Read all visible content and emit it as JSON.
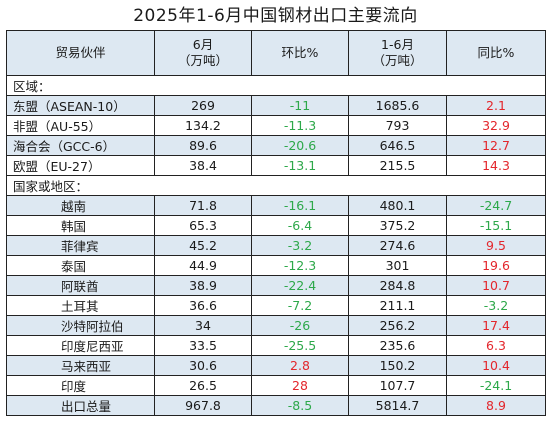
{
  "title": "2025年1-6月中国钢材出口主要流向",
  "headers": {
    "partner": "贸易伙伴",
    "june_line1": "6月",
    "june_line2": "（万吨）",
    "mom": "环比%",
    "h1_line1": "1-6月",
    "h1_line2": "（万吨）",
    "yoy": "同比%"
  },
  "sections": {
    "region": "区域：",
    "country": "国家或地区："
  },
  "regions": [
    {
      "name": "东盟（ASEAN-10）",
      "june": "269",
      "mom": "-11",
      "h1": "1685.6",
      "yoy": "2.1",
      "mom_color": "green",
      "yoy_color": "red"
    },
    {
      "name": "非盟（AU-55）",
      "june": "134.2",
      "mom": "-11.3",
      "h1": "793",
      "yoy": "32.9",
      "mom_color": "green",
      "yoy_color": "red"
    },
    {
      "name": "海合会（GCC-6）",
      "june": "89.6",
      "mom": "-20.6",
      "h1": "646.5",
      "yoy": "12.7",
      "mom_color": "green",
      "yoy_color": "red"
    },
    {
      "name": "欧盟（EU-27）",
      "june": "38.4",
      "mom": "-13.1",
      "h1": "215.5",
      "yoy": "14.3",
      "mom_color": "green",
      "yoy_color": "red"
    }
  ],
  "countries": [
    {
      "name": "越南",
      "june": "71.8",
      "mom": "-16.1",
      "h1": "480.1",
      "yoy": "-24.7",
      "mom_color": "green",
      "yoy_color": "green"
    },
    {
      "name": "韩国",
      "june": "65.3",
      "mom": "-6.4",
      "h1": "375.2",
      "yoy": "-15.1",
      "mom_color": "green",
      "yoy_color": "green"
    },
    {
      "name": "菲律宾",
      "june": "45.2",
      "mom": "-3.2",
      "h1": "274.6",
      "yoy": "9.5",
      "mom_color": "green",
      "yoy_color": "red"
    },
    {
      "name": "泰国",
      "june": "44.9",
      "mom": "-12.3",
      "h1": "301",
      "yoy": "19.6",
      "mom_color": "green",
      "yoy_color": "red"
    },
    {
      "name": "阿联酋",
      "june": "38.9",
      "mom": "-22.4",
      "h1": "284.8",
      "yoy": "10.7",
      "mom_color": "green",
      "yoy_color": "red"
    },
    {
      "name": "土耳其",
      "june": "36.6",
      "mom": "-7.2",
      "h1": "211.1",
      "yoy": "-3.2",
      "mom_color": "green",
      "yoy_color": "green"
    },
    {
      "name": "沙特阿拉伯",
      "june": "34",
      "mom": "-26",
      "h1": "256.2",
      "yoy": "17.4",
      "mom_color": "green",
      "yoy_color": "red"
    },
    {
      "name": "印度尼西亚",
      "june": "33.5",
      "mom": "-25.5",
      "h1": "235.6",
      "yoy": "6.3",
      "mom_color": "green",
      "yoy_color": "red"
    },
    {
      "name": "马来西亚",
      "june": "30.6",
      "mom": "2.8",
      "h1": "150.2",
      "yoy": "10.4",
      "mom_color": "red",
      "yoy_color": "red"
    },
    {
      "name": "印度",
      "june": "26.5",
      "mom": "28",
      "h1": "107.7",
      "yoy": "-24.1",
      "mom_color": "red",
      "yoy_color": "green"
    },
    {
      "name": "出口总量",
      "june": "967.8",
      "mom": "-8.5",
      "h1": "5814.7",
      "yoy": "8.9",
      "mom_color": "green",
      "yoy_color": "red"
    }
  ],
  "colors": {
    "header_fill": "#dde8f2",
    "positive": "#e3262c",
    "negative": "#2da84a"
  }
}
